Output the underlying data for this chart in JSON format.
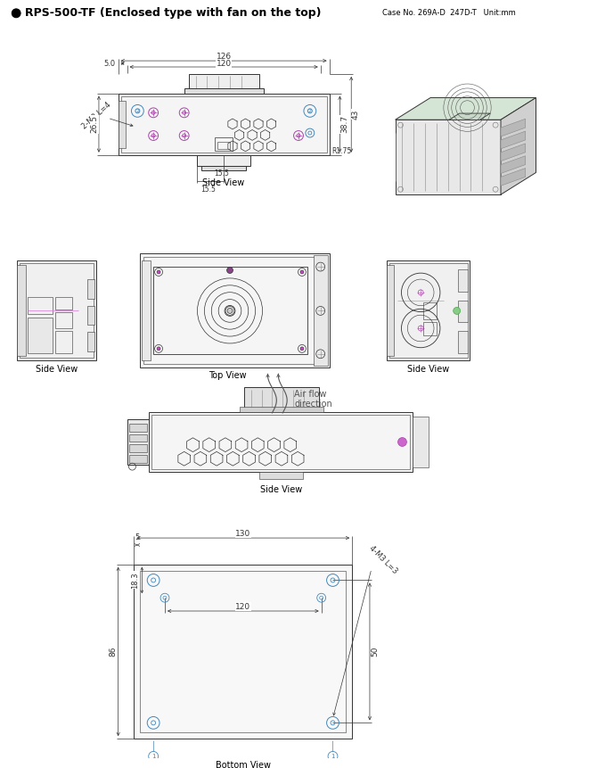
{
  "title": "RPS-500-TF (Enclosed type with fan on the top)",
  "case_info": "Case No. 269A-D  247D-T   Unit:mm",
  "bg_color": "#ffffff",
  "line_color": "#333333",
  "dim_color": "#333333",
  "cyan_color": "#4488bb",
  "purple_color": "#aa44aa",
  "gray_color": "#888888",
  "green_color": "#44aa44",
  "label_side1": "Side View",
  "label_top": "Top View",
  "label_side2": "Side View",
  "label_side3": "Side View",
  "label_bottom": "Bottom View",
  "airflow_label_line1": "Air flow",
  "airflow_label_line2": "direction",
  "dim_126": "126",
  "dim_120a": "120",
  "dim_5": "5.0",
  "dim_26_5": "26.5",
  "dim_38_7": "38.7",
  "dim_43": "43",
  "dim_15_5a": "15.5",
  "dim_15_5b": "15.5",
  "dim_r175": "R1.75",
  "dim_m3_4": "2-M3 L=4",
  "dim_130": "130",
  "dim_5b": "5",
  "dim_18_3": "18.3",
  "dim_86": "86",
  "dim_120b": "120",
  "dim_50": "50",
  "dim_4m3": "4-M3 L=3"
}
